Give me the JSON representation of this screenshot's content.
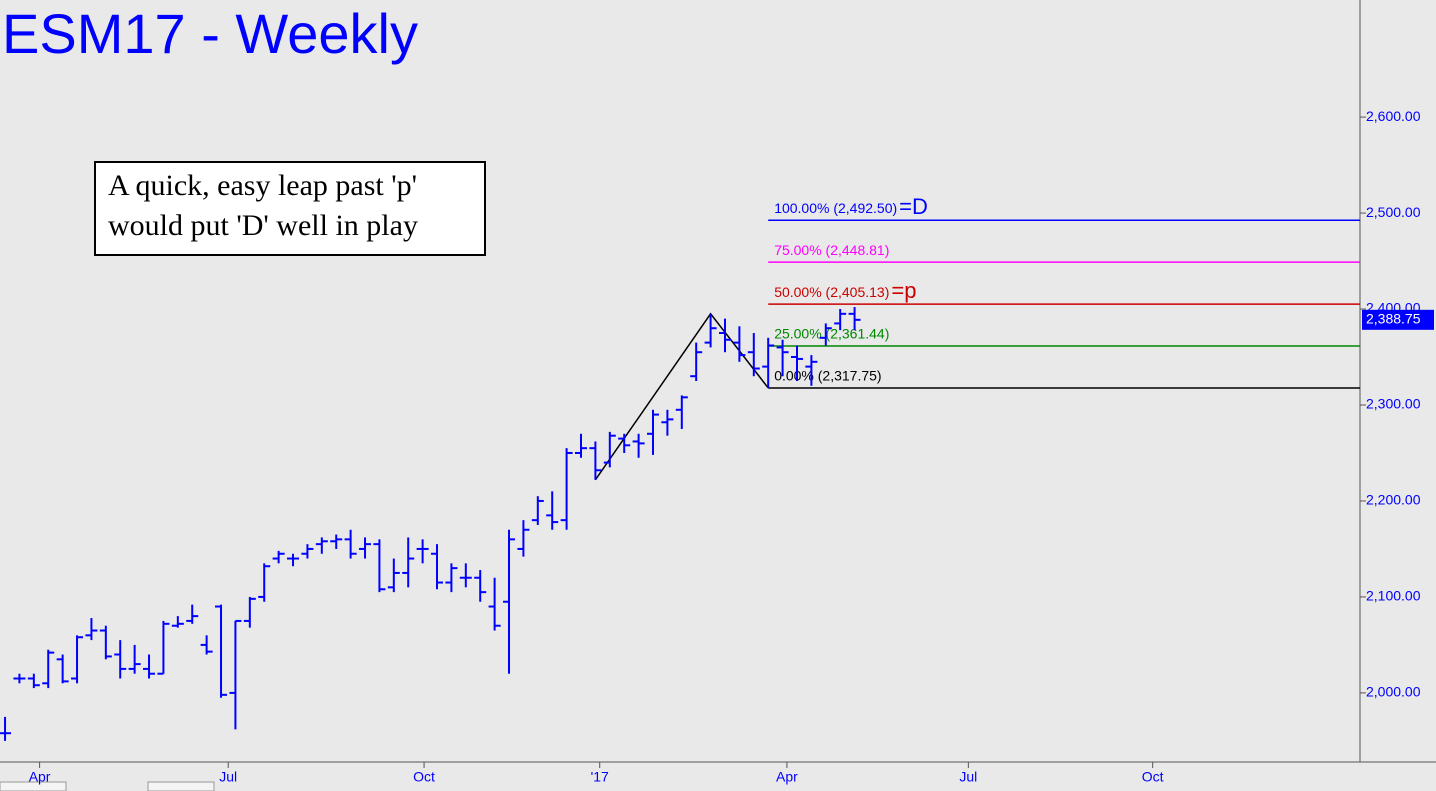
{
  "chart_data": {
    "type": "ohlc",
    "title": "ESM17 - Weekly",
    "annotation": [
      "A quick, easy leap past 'p'",
      "would put 'D' well in play"
    ],
    "color": "#0000ff",
    "x": [
      0,
      1,
      2,
      3,
      4,
      5,
      6,
      7,
      8,
      9,
      10,
      11,
      12,
      13,
      14,
      15,
      16,
      17,
      18,
      19,
      20,
      21,
      22,
      23,
      24,
      25,
      26,
      27,
      28,
      29,
      30,
      31,
      32,
      33,
      34,
      35,
      36,
      37,
      38,
      39,
      40,
      41,
      42,
      43,
      44,
      45,
      46,
      47,
      48,
      49,
      50,
      51,
      52,
      53,
      54,
      55,
      56,
      57,
      58,
      59
    ],
    "open": [
      1958,
      2015,
      2015,
      2010,
      2035,
      2015,
      2060,
      2065,
      2040,
      2025,
      2025,
      2020,
      2070,
      2075,
      2050,
      2090,
      2000,
      2075,
      2100,
      2140,
      2140,
      2145,
      2155,
      2158,
      2160,
      2150,
      2155,
      2110,
      2125,
      2150,
      2145,
      2115,
      2120,
      2120,
      2090,
      2095,
      2150,
      2180,
      2185,
      2180,
      2250,
      2255,
      2240,
      2265,
      2262,
      2270,
      2282,
      2295,
      2330,
      2365,
      2375,
      2365,
      2355,
      2340,
      2360,
      2350,
      2340,
      2370,
      2385,
      2395
    ],
    "high": [
      1975,
      2020,
      2020,
      2045,
      2040,
      2060,
      2078,
      2070,
      2055,
      2050,
      2040,
      2075,
      2080,
      2092,
      2060,
      2092,
      2075,
      2100,
      2135,
      2148,
      2145,
      2155,
      2162,
      2165,
      2170,
      2162,
      2160,
      2140,
      2162,
      2160,
      2155,
      2135,
      2135,
      2128,
      2120,
      2170,
      2180,
      2205,
      2210,
      2255,
      2270,
      2262,
      2272,
      2270,
      2270,
      2295,
      2295,
      2310,
      2365,
      2395,
      2390,
      2382,
      2375,
      2370,
      2368,
      2362,
      2352,
      2385,
      2400,
      2402
    ],
    "low": [
      1950,
      2010,
      2005,
      2005,
      2010,
      2010,
      2055,
      2035,
      2015,
      2020,
      2015,
      2020,
      2068,
      2072,
      2040,
      1995,
      1962,
      2068,
      2095,
      2135,
      2132,
      2140,
      2145,
      2150,
      2140,
      2140,
      2105,
      2105,
      2110,
      2135,
      2108,
      2105,
      2110,
      2095,
      2065,
      2020,
      2142,
      2175,
      2170,
      2170,
      2245,
      2222,
      2235,
      2250,
      2245,
      2248,
      2268,
      2275,
      2325,
      2360,
      2355,
      2345,
      2330,
      2317.75,
      2330,
      2325,
      2320,
      2362,
      2378,
      2378
    ],
    "close": [
      1958,
      2015,
      2008,
      2042,
      2012,
      2058,
      2065,
      2038,
      2025,
      2030,
      2020,
      2072,
      2072,
      2080,
      2043,
      1998,
      2075,
      2098,
      2132,
      2145,
      2140,
      2150,
      2158,
      2160,
      2145,
      2155,
      2108,
      2125,
      2140,
      2150,
      2115,
      2130,
      2120,
      2105,
      2070,
      2160,
      2170,
      2200,
      2178,
      2250,
      2255,
      2232,
      2268,
      2258,
      2260,
      2290,
      2285,
      2308,
      2355,
      2380,
      2368,
      2352,
      2338,
      2362,
      2355,
      2348,
      2345,
      2380,
      2395,
      2388.75
    ],
    "last_price": {
      "value": 2388.75,
      "label": "2,388.75"
    },
    "pattern": {
      "color": "#000000",
      "x": [
        41,
        49,
        53
      ],
      "y": [
        2222,
        2395,
        2317.75
      ]
    },
    "levels": [
      {
        "label": "100.00% (2,492.50)",
        "value": 2492.5,
        "color": "#0000ff",
        "suffix": "=D"
      },
      {
        "label": "75.00% (2,448.81)",
        "value": 2448.81,
        "color": "#ff00ff"
      },
      {
        "label": "50.00% (2,405.13)",
        "value": 2405.13,
        "color": "#cc0000",
        "suffix": "=p"
      },
      {
        "label": "25.00% (2,361.44)",
        "value": 2361.44,
        "color": "#008800"
      },
      {
        "label": "0.00% (2,317.75)",
        "value": 2317.75,
        "color": "#000000"
      }
    ],
    "xlim": [
      -0.35,
      94.1
    ],
    "xticks": [
      {
        "value": 2.4,
        "label": "Apr"
      },
      {
        "value": 15.5,
        "label": "Jul"
      },
      {
        "value": 29.1,
        "label": "Oct"
      },
      {
        "value": 41.3,
        "label": "'17"
      },
      {
        "value": 54.3,
        "label": "Apr"
      },
      {
        "value": 66.9,
        "label": "Jul"
      },
      {
        "value": 79.7,
        "label": "Oct"
      }
    ],
    "ylim": [
      1928,
      2722
    ],
    "yticks": [
      {
        "value": 2000,
        "label": "2,000.00"
      },
      {
        "value": 2100,
        "label": "2,100.00"
      },
      {
        "value": 2200,
        "label": "2,200.00"
      },
      {
        "value": 2300,
        "label": "2,300.00"
      },
      {
        "value": 2400,
        "label": "2,400.00"
      },
      {
        "value": 2500,
        "label": "2,500.00"
      },
      {
        "value": 2600,
        "label": "2,600.00"
      }
    ],
    "grid": false
  }
}
